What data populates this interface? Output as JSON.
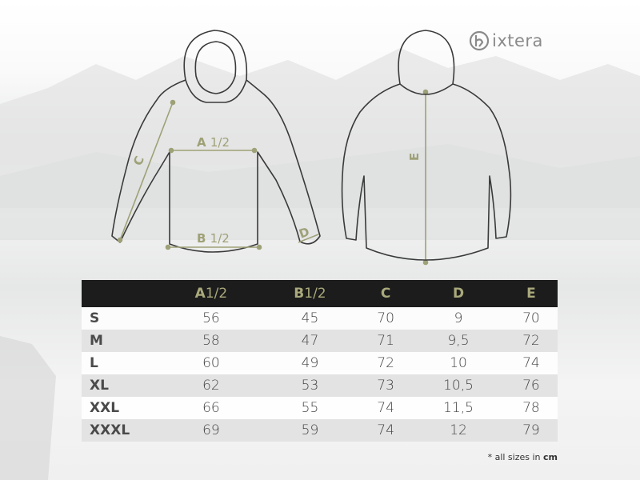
{
  "brand": {
    "name": "ixtera"
  },
  "diagram_labels": {
    "a": "A",
    "a_half": "1/2",
    "b": "B",
    "b_half": "1/2",
    "c": "C",
    "d": "D",
    "e": "E"
  },
  "table": {
    "headers": [
      {
        "letter": "",
        "suffix": ""
      },
      {
        "letter": "A",
        "suffix": "1/2"
      },
      {
        "letter": "B",
        "suffix": "1/2"
      },
      {
        "letter": "C",
        "suffix": ""
      },
      {
        "letter": "D",
        "suffix": ""
      },
      {
        "letter": "E",
        "suffix": ""
      }
    ],
    "rows": [
      [
        "S",
        "56",
        "45",
        "70",
        "9",
        "70"
      ],
      [
        "M",
        "58",
        "47",
        "71",
        "9,5",
        "72"
      ],
      [
        "L",
        "60",
        "49",
        "72",
        "10",
        "74"
      ],
      [
        "XL",
        "62",
        "53",
        "73",
        "10,5",
        "76"
      ],
      [
        "XXL",
        "66",
        "55",
        "74",
        "11,5",
        "78"
      ],
      [
        "XXXL",
        "69",
        "59",
        "74",
        "12",
        "79"
      ]
    ]
  },
  "footnote": {
    "prefix": "* all sizes in ",
    "unit": "cm"
  },
  "colors": {
    "header_bg": "#1c1c1c",
    "accent": "#a9a97c",
    "row_alt": "#e3e3e3",
    "outline": "#3a3a3a"
  }
}
